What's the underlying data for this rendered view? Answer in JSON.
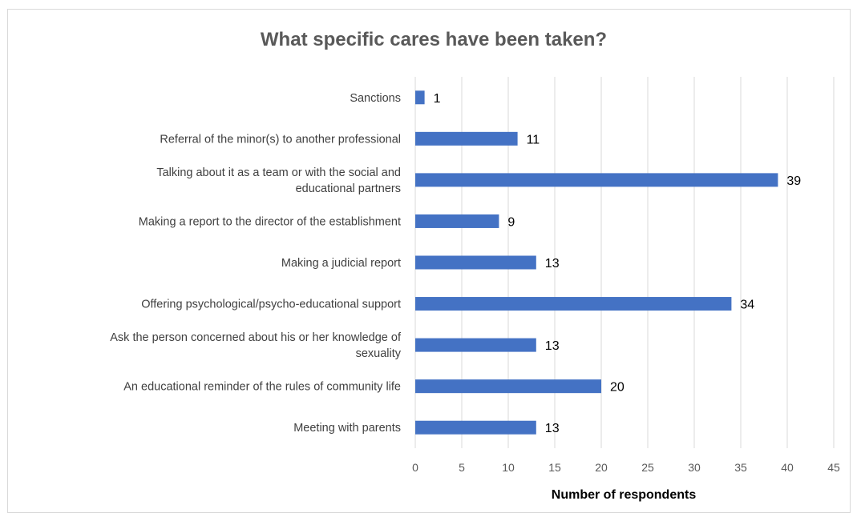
{
  "chart_data": {
    "type": "bar",
    "orientation": "horizontal",
    "title": "What specific cares have been taken?",
    "xlabel": "Number of respondents",
    "ylabel": "",
    "xlim": [
      0,
      45
    ],
    "x_ticks": [
      0,
      5,
      10,
      15,
      20,
      25,
      30,
      35,
      40,
      45
    ],
    "grid": true,
    "legend": "none",
    "bar_color": "#4472c4",
    "categories": [
      [
        "Sanctions"
      ],
      [
        "Referral of the minor(s) to another professional"
      ],
      [
        "Talking about it as a team or with the social and",
        "educational partners"
      ],
      [
        "Making a report to the director of the establishment"
      ],
      [
        "Making a judicial report"
      ],
      [
        "Offering psychological/psycho-educational support"
      ],
      [
        "Ask the person concerned about his or her knowledge of",
        "sexuality"
      ],
      [
        "An educational reminder of the rules of community life"
      ],
      [
        "Meeting with parents"
      ]
    ],
    "values": [
      1,
      11,
      39,
      9,
      13,
      34,
      13,
      20,
      13
    ]
  }
}
